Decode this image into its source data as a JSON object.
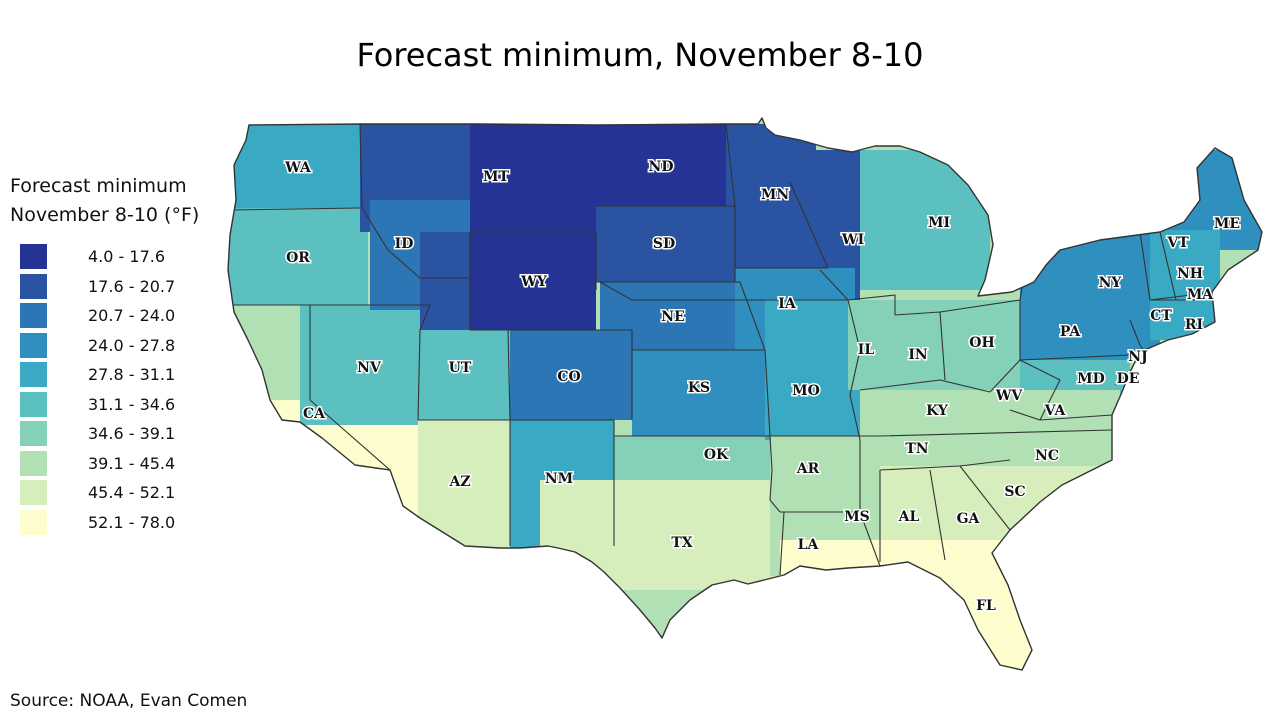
{
  "title": "Forecast minimum, November 8-10",
  "legend": {
    "title_line1": "Forecast minimum",
    "title_line2": "November 8-10 (°F)",
    "items": [
      {
        "label": "4.0 - 17.6",
        "color": "#253494"
      },
      {
        "label": "17.6 - 20.7",
        "color": "#2a53a2"
      },
      {
        "label": "20.7 - 24.0",
        "color": "#2c76b6"
      },
      {
        "label": "24.0 - 27.8",
        "color": "#2f8fbf"
      },
      {
        "label": "27.8 - 31.1",
        "color": "#3aa9c3"
      },
      {
        "label": "31.1 - 34.6",
        "color": "#5cc0c0"
      },
      {
        "label": "34.6 - 39.1",
        "color": "#85d0b9"
      },
      {
        "label": "39.1 - 45.4",
        "color": "#b0e0b3"
      },
      {
        "label": "45.4 - 52.1",
        "color": "#d6eebb"
      },
      {
        "label": "52.1 - 78.0",
        "color": "#fefdcd"
      }
    ]
  },
  "source": "Source: NOAA, Evan Comen",
  "states": [
    {
      "abbr": "WA",
      "band": 4
    },
    {
      "abbr": "OR",
      "band": 5
    },
    {
      "abbr": "CA",
      "band": 8
    },
    {
      "abbr": "NV",
      "band": 5
    },
    {
      "abbr": "ID",
      "band": 1
    },
    {
      "abbr": "MT",
      "band": 1
    },
    {
      "abbr": "WY",
      "band": 0
    },
    {
      "abbr": "UT",
      "band": 5
    },
    {
      "abbr": "CO",
      "band": 1
    },
    {
      "abbr": "AZ",
      "band": 7
    },
    {
      "abbr": "NM",
      "band": 3
    },
    {
      "abbr": "ND",
      "band": 0
    },
    {
      "abbr": "SD",
      "band": 0
    },
    {
      "abbr": "NE",
      "band": 1
    },
    {
      "abbr": "KS",
      "band": 3
    },
    {
      "abbr": "OK",
      "band": 6
    },
    {
      "abbr": "TX",
      "band": 8
    },
    {
      "abbr": "MN",
      "band": 1
    },
    {
      "abbr": "IA",
      "band": 2
    },
    {
      "abbr": "MO",
      "band": 4
    },
    {
      "abbr": "AR",
      "band": 7
    },
    {
      "abbr": "LA",
      "band": 9
    },
    {
      "abbr": "WI",
      "band": 1
    },
    {
      "abbr": "IL",
      "band": 4
    },
    {
      "abbr": "MI",
      "band": 5
    },
    {
      "abbr": "IN",
      "band": 6
    },
    {
      "abbr": "OH",
      "band": 6
    },
    {
      "abbr": "KY",
      "band": 7
    },
    {
      "abbr": "TN",
      "band": 7
    },
    {
      "abbr": "MS",
      "band": 8
    },
    {
      "abbr": "AL",
      "band": 8
    },
    {
      "abbr": "GA",
      "band": 8
    },
    {
      "abbr": "FL",
      "band": 9
    },
    {
      "abbr": "SC",
      "band": 7
    },
    {
      "abbr": "NC",
      "band": 6
    },
    {
      "abbr": "VA",
      "band": 5
    },
    {
      "abbr": "WV",
      "band": 6
    },
    {
      "abbr": "MD",
      "band": 5
    },
    {
      "abbr": "DE",
      "band": 5
    },
    {
      "abbr": "PA",
      "band": 4
    },
    {
      "abbr": "NJ",
      "band": 5
    },
    {
      "abbr": "NY",
      "band": 3
    },
    {
      "abbr": "CT",
      "band": 4
    },
    {
      "abbr": "RI",
      "band": 5
    },
    {
      "abbr": "MA",
      "band": 4
    },
    {
      "abbr": "VT",
      "band": 2
    },
    {
      "abbr": "NH",
      "band": 2
    },
    {
      "abbr": "ME",
      "band": 2
    }
  ]
}
